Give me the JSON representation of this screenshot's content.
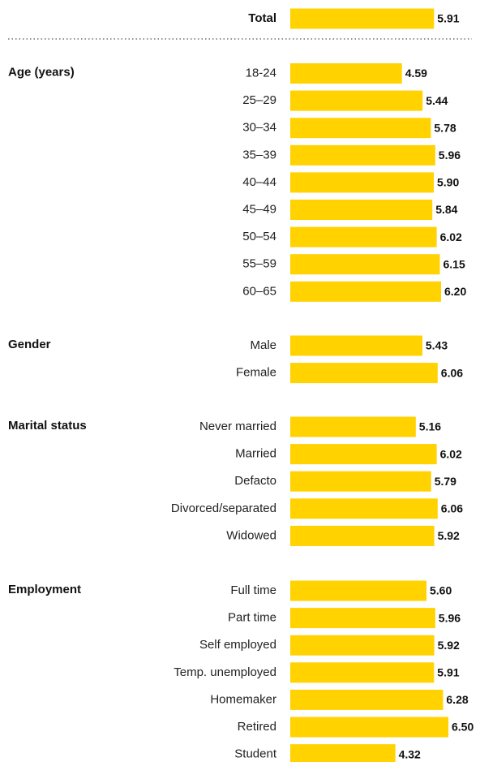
{
  "chart_data": {
    "type": "bar",
    "orientation": "horizontal",
    "bar_color": "#FFD200",
    "separator": "dotted",
    "total": {
      "label": "Total",
      "value": 5.91
    },
    "groups": [
      {
        "name": "Age (years)",
        "categories": [
          "18-24",
          "25–29",
          "30–34",
          "35–39",
          "40–44",
          "45–49",
          "50–54",
          "55–59",
          "60–65"
        ],
        "values": [
          4.59,
          5.44,
          5.78,
          5.96,
          5.9,
          5.84,
          6.02,
          6.15,
          6.2
        ],
        "value_labels": [
          "4.59",
          "5.44",
          "5.78",
          "5.96",
          "5.90",
          "5.84",
          "6.02",
          "6.15",
          "6.20"
        ]
      },
      {
        "name": "Gender",
        "categories": [
          "Male",
          "Female"
        ],
        "values": [
          5.43,
          6.06
        ],
        "value_labels": [
          "5.43",
          "6.06"
        ]
      },
      {
        "name": "Marital status",
        "categories": [
          "Never married",
          "Married",
          "Defacto",
          "Divorced/separated",
          "Widowed"
        ],
        "values": [
          5.16,
          6.02,
          5.79,
          6.06,
          5.92
        ],
        "value_labels": [
          "5.16",
          "6.02",
          "5.79",
          "6.06",
          "5.92"
        ]
      },
      {
        "name": "Employment",
        "categories": [
          "Full time",
          "Part time",
          "Self employed",
          "Temp. unemployed",
          "Homemaker",
          "Retired",
          "Student"
        ],
        "values": [
          5.6,
          5.96,
          5.92,
          5.91,
          6.28,
          6.5,
          4.32
        ],
        "value_labels": [
          "5.60",
          "5.96",
          "5.92",
          "5.91",
          "6.28",
          "6.50",
          "4.32"
        ]
      }
    ],
    "total_value_label": "5.91"
  }
}
